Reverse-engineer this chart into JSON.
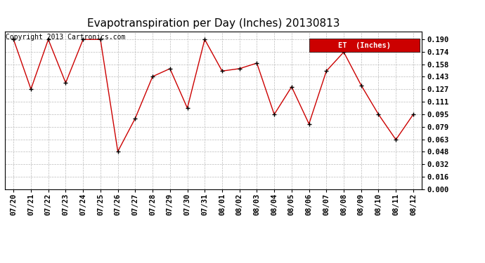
{
  "title": "Evapotranspiration per Day (Inches) 20130813",
  "copyright": "Copyright 2013 Cartronics.com",
  "legend_label": "ET  (Inches)",
  "legend_bg": "#cc0000",
  "legend_text_color": "#ffffff",
  "x_labels": [
    "07/20",
    "07/21",
    "07/22",
    "07/23",
    "07/24",
    "07/25",
    "07/26",
    "07/27",
    "07/28",
    "07/29",
    "07/30",
    "07/31",
    "08/01",
    "08/02",
    "08/03",
    "08/04",
    "08/05",
    "08/06",
    "08/07",
    "08/08",
    "08/09",
    "08/10",
    "08/11",
    "08/12"
  ],
  "y_values": [
    0.19,
    0.127,
    0.19,
    0.135,
    0.19,
    0.19,
    0.048,
    0.09,
    0.143,
    0.153,
    0.103,
    0.19,
    0.15,
    0.153,
    0.16,
    0.095,
    0.13,
    0.083,
    0.15,
    0.174,
    0.132,
    0.095,
    0.063,
    0.095
  ],
  "line_color": "#cc0000",
  "marker_color": "#000000",
  "marker_size": 5,
  "y_ticks": [
    0.0,
    0.016,
    0.032,
    0.048,
    0.063,
    0.079,
    0.095,
    0.111,
    0.127,
    0.143,
    0.158,
    0.174,
    0.19
  ],
  "y_tick_labels": [
    "0.000",
    "0.016",
    "0.032",
    "0.048",
    "0.063",
    "0.079",
    "0.095",
    "0.111",
    "0.127",
    "0.143",
    "0.158",
    "0.174",
    "0.190"
  ],
  "ylim": [
    0.0,
    0.2
  ],
  "bg_color": "#ffffff",
  "grid_color": "#bbbbbb",
  "title_fontsize": 11,
  "axis_fontsize": 7.5,
  "copyright_fontsize": 7
}
